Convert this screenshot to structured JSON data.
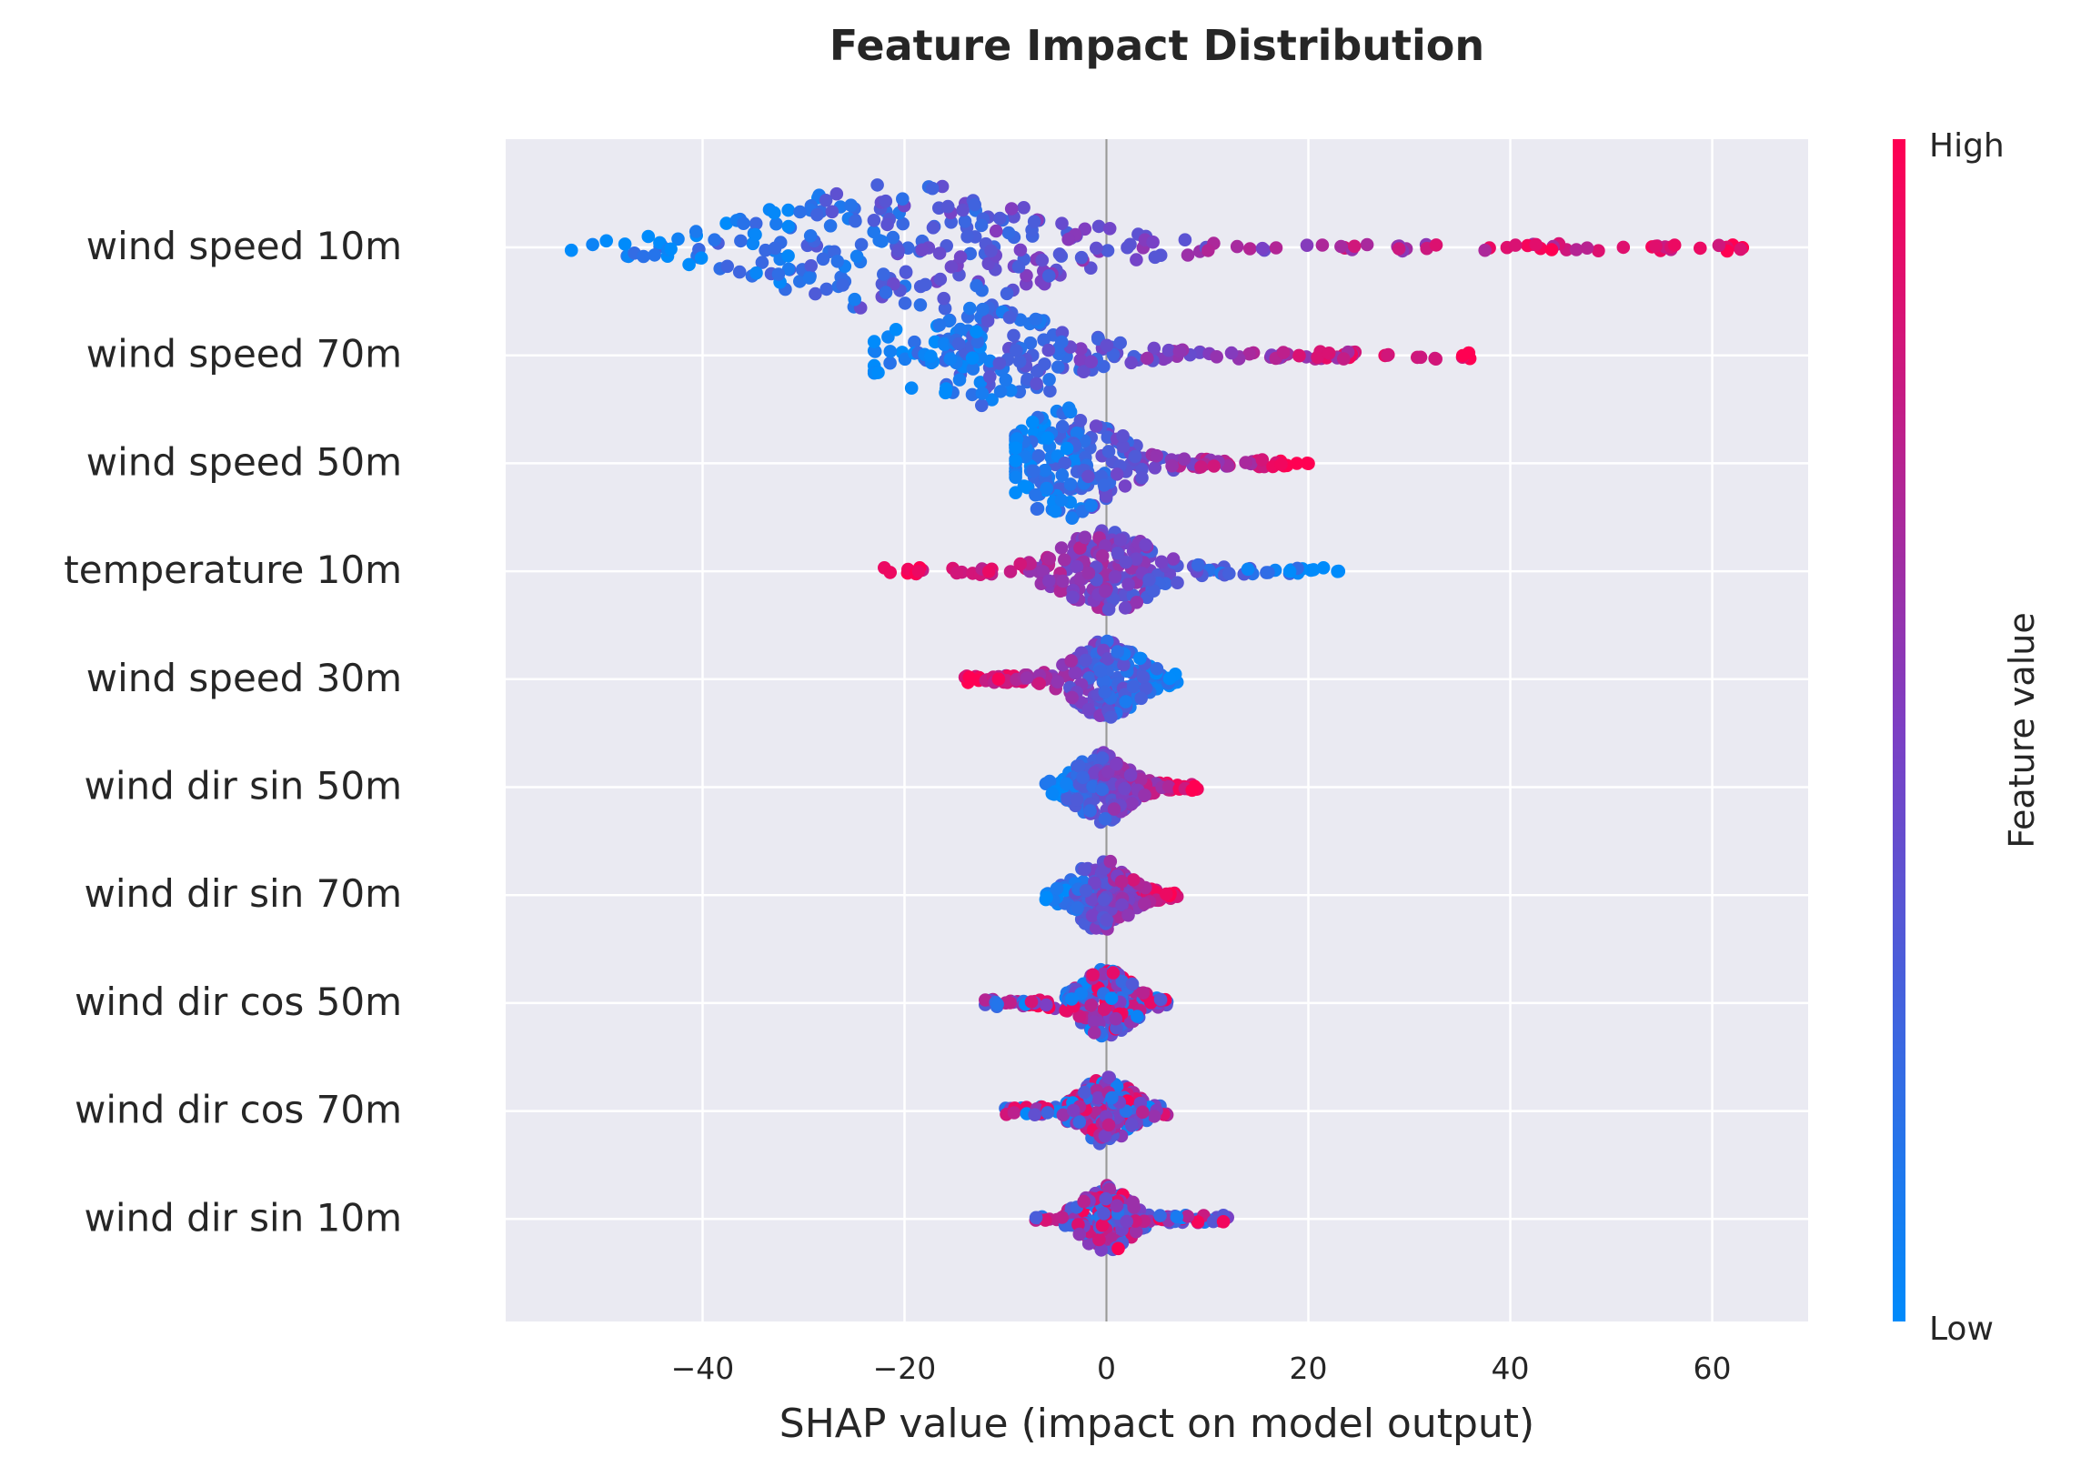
{
  "chart_data": {
    "type": "scatter",
    "subtype": "beeswarm",
    "title": "Feature Impact Distribution",
    "xlabel": "SHAP value (impact on model output)",
    "ylabel": "",
    "xlim": [
      -59.5,
      69.5
    ],
    "xticks": [
      -40,
      -20,
      0,
      20,
      40,
      60
    ],
    "xtick_labels": [
      "−40",
      "−20",
      "0",
      "20",
      "40",
      "60"
    ],
    "grid": true,
    "colorbar": {
      "label": "Feature value",
      "high_label": "High",
      "low_label": "Low",
      "low_color": "#008bfb",
      "mid_color": "#7c3fc4",
      "high_color": "#ff0052"
    },
    "colors": {
      "background": "#eaeaf2",
      "grid": "#ffffff",
      "zero_line": "#999999"
    },
    "features": [
      {
        "name": "wind speed 10m",
        "min": -53.0,
        "max": 63.0,
        "peak": -20.0,
        "spread": 11.0,
        "thickness": 2.6,
        "trend": 1,
        "count": 300
      },
      {
        "name": "wind speed 70m",
        "min": -23.0,
        "max": 36.0,
        "peak": -12.0,
        "spread": 7.0,
        "thickness": 2.0,
        "trend": 1,
        "count": 230
      },
      {
        "name": "wind speed 50m",
        "min": -9.0,
        "max": 20.0,
        "peak": -4.0,
        "spread": 4.0,
        "thickness": 2.2,
        "trend": 1,
        "count": 230
      },
      {
        "name": "temperature 10m",
        "min": -22.0,
        "max": 23.0,
        "peak": 0.0,
        "spread": 3.5,
        "thickness": 1.6,
        "trend": -1,
        "count": 220
      },
      {
        "name": "wind speed 30m",
        "min": -14.0,
        "max": 7.0,
        "peak": 0.0,
        "spread": 2.5,
        "thickness": 1.5,
        "trend": -1,
        "count": 220
      },
      {
        "name": "wind dir sin 50m",
        "min": -6.0,
        "max": 9.0,
        "peak": -0.5,
        "spread": 2.0,
        "thickness": 1.4,
        "trend": 1,
        "count": 220
      },
      {
        "name": "wind dir sin 70m",
        "min": -6.0,
        "max": 7.0,
        "peak": -0.5,
        "spread": 2.0,
        "thickness": 1.4,
        "trend": 1,
        "count": 210
      },
      {
        "name": "wind dir cos 50m",
        "min": -12.0,
        "max": 6.0,
        "peak": 0.0,
        "spread": 2.0,
        "thickness": 1.3,
        "trend": 0,
        "count": 200
      },
      {
        "name": "wind dir cos 70m",
        "min": -10.0,
        "max": 6.0,
        "peak": 0.0,
        "spread": 2.0,
        "thickness": 1.3,
        "trend": 0,
        "count": 200
      },
      {
        "name": "wind dir sin 10m",
        "min": -7.0,
        "max": 12.0,
        "peak": 0.0,
        "spread": 1.8,
        "thickness": 1.3,
        "trend": 0,
        "count": 190
      }
    ]
  }
}
